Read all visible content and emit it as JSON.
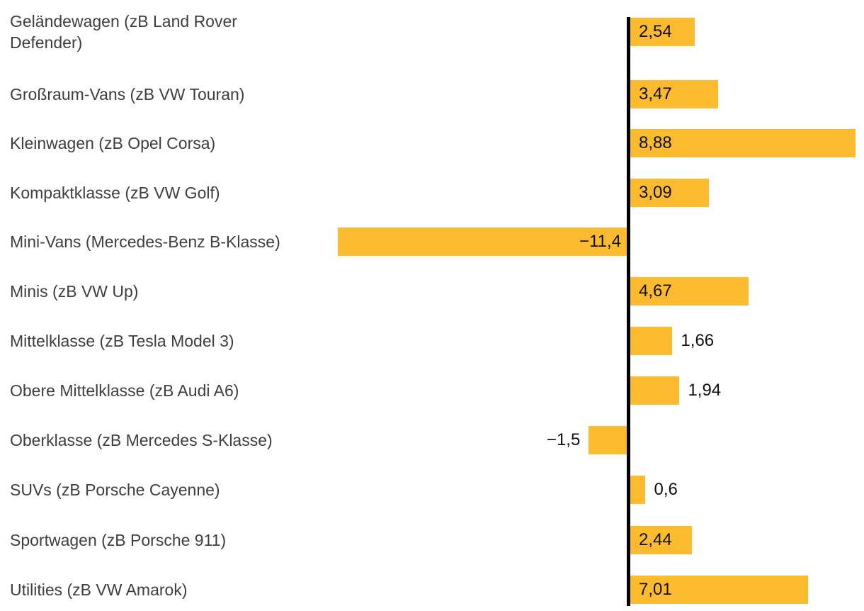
{
  "chart_data": {
    "type": "bar",
    "orientation": "horizontal",
    "title": "",
    "xlabel": "",
    "ylabel": "",
    "grid": false,
    "legend": false,
    "baseline": 0,
    "xlim": [
      -11.4,
      8.88
    ],
    "categories": [
      "Geländewagen (zB Land Rover\nDefender)",
      "Großraum-Vans (zB VW Touran)",
      "Kleinwagen (zB Opel Corsa)",
      "Kompaktklasse (zB VW Golf)",
      "Mini-Vans (Mercedes-Benz B-Klasse)",
      "Minis (zB VW Up)",
      "Mittelklasse (zB Tesla Model 3)",
      "Obere Mittelklasse (zB Audi A6)",
      "Oberklasse (zB Mercedes S-Klasse)",
      "SUVs (zB Porsche Cayenne)",
      "Sportwagen (zB Porsche 911)",
      "Utilities (zB VW Amarok)"
    ],
    "values": [
      2.54,
      3.47,
      8.88,
      3.09,
      -11.4,
      4.67,
      1.66,
      1.94,
      -1.5,
      0.6,
      2.44,
      7.01
    ],
    "value_labels": [
      "2,54",
      "3,47",
      "8,88",
      "3,09",
      "−11,4",
      "4,67",
      "1,66",
      "1,94",
      "−1,5",
      "0,6",
      "2,44",
      "7,01"
    ],
    "colors": {
      "bar": "#fcbb2f",
      "axis": "#000000",
      "category_label": "#3e3e3e",
      "value_label": "#101010",
      "background": "#ffffff"
    }
  }
}
